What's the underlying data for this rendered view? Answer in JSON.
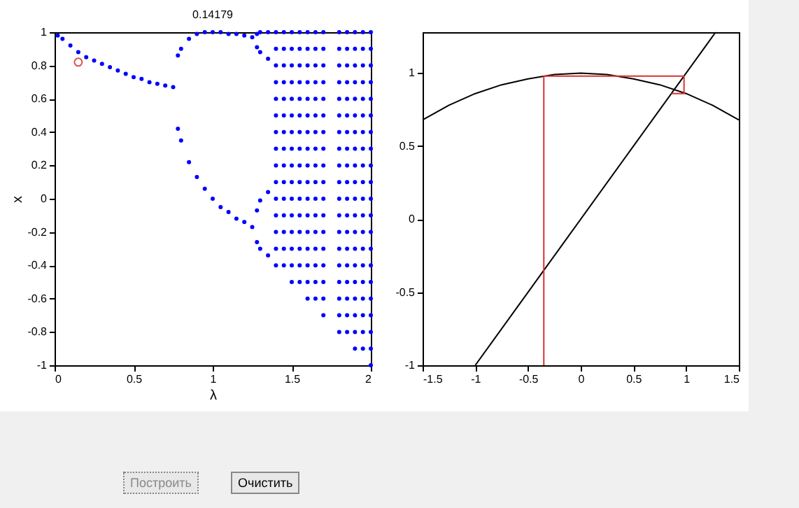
{
  "chart_data": [
    {
      "type": "scatter",
      "title": "0.14179",
      "xlabel": "λ",
      "ylabel": "x",
      "xlim": [
        0,
        2
      ],
      "xticks": [
        0,
        0.5,
        1,
        1.5,
        2
      ],
      "ylim": [
        -1,
        1
      ],
      "yticks": [
        -1,
        -0.8,
        -0.6,
        -0.4,
        -0.2,
        0,
        0.2,
        0.4,
        0.6,
        0.8,
        1
      ],
      "grid": false,
      "marker": "circle",
      "annotations": [
        "Построить",
        "Очистить"
      ],
      "series": [
        {
          "color": "#0000ff",
          "x": [
            0.02,
            0.05,
            0.1,
            0.15,
            0.2,
            0.25,
            0.3,
            0.35,
            0.4,
            0.45,
            0.5,
            0.55,
            0.6,
            0.65,
            0.7,
            0.75,
            0.78,
            0.78,
            0.8,
            0.8,
            0.85,
            0.85,
            0.9,
            0.9,
            0.95,
            0.95,
            1.0,
            1.0,
            1.05,
            1.05,
            1.1,
            1.1,
            1.15,
            1.15,
            1.2,
            1.2,
            1.25,
            1.25,
            1.28,
            1.28,
            1.28,
            1.28,
            1.3,
            1.3,
            1.3,
            1.3,
            1.35,
            1.35,
            1.35,
            1.35
          ],
          "values": [
            0.98,
            0.96,
            0.92,
            0.88,
            0.85,
            0.83,
            0.81,
            0.79,
            0.77,
            0.75,
            0.73,
            0.72,
            0.7,
            0.69,
            0.68,
            0.67,
            0.86,
            0.42,
            0.9,
            0.35,
            0.96,
            0.22,
            0.99,
            0.13,
            1.0,
            0.06,
            1.0,
            0.0,
            1.0,
            -0.05,
            0.99,
            -0.08,
            0.99,
            -0.12,
            0.98,
            -0.14,
            0.97,
            -0.17,
            0.99,
            0.91,
            -0.07,
            -0.26,
            1.0,
            0.88,
            -0.01,
            -0.3,
            1.0,
            0.84,
            0.04,
            -0.34
          ]
        },
        {
          "color": "#0000ff",
          "x": [
            1.4,
            1.4,
            1.4,
            1.4,
            1.4,
            1.4,
            1.4,
            1.4,
            1.4,
            1.4,
            1.4,
            1.4,
            1.4,
            1.4,
            1.4,
            1.45,
            1.45,
            1.45,
            1.45,
            1.45,
            1.45,
            1.45,
            1.45,
            1.45,
            1.45,
            1.45,
            1.45,
            1.45,
            1.45,
            1.45,
            1.5,
            1.5,
            1.5,
            1.5,
            1.5,
            1.5,
            1.5,
            1.5,
            1.5,
            1.5,
            1.5,
            1.5,
            1.5,
            1.5,
            1.5,
            1.5,
            1.55,
            1.55,
            1.55,
            1.55,
            1.55,
            1.55,
            1.55,
            1.55,
            1.55,
            1.55,
            1.55,
            1.55,
            1.55,
            1.55,
            1.55,
            1.55,
            1.6,
            1.6,
            1.6,
            1.6,
            1.6,
            1.6,
            1.6,
            1.6,
            1.6,
            1.6,
            1.6,
            1.6,
            1.6,
            1.6,
            1.6,
            1.6,
            1.6,
            1.65,
            1.65,
            1.65,
            1.65,
            1.65,
            1.65,
            1.65,
            1.65,
            1.65,
            1.65,
            1.65,
            1.65,
            1.65,
            1.65,
            1.65,
            1.65,
            1.65,
            1.7,
            1.7,
            1.7,
            1.7,
            1.7,
            1.7,
            1.7,
            1.7,
            1.7,
            1.7,
            1.7,
            1.7,
            1.7,
            1.7,
            1.7,
            1.7,
            1.7,
            1.7,
            1.8,
            1.8,
            1.8,
            1.8,
            1.8,
            1.8,
            1.8,
            1.8,
            1.8,
            1.8,
            1.8,
            1.8,
            1.8,
            1.8,
            1.8,
            1.8,
            1.8,
            1.8,
            1.8,
            1.85,
            1.85,
            1.85,
            1.85,
            1.85,
            1.85,
            1.85,
            1.85,
            1.85,
            1.85,
            1.85,
            1.85,
            1.85,
            1.85,
            1.85,
            1.85,
            1.85,
            1.85,
            1.85,
            1.9,
            1.9,
            1.9,
            1.9,
            1.9,
            1.9,
            1.9,
            1.9,
            1.9,
            1.9,
            1.9,
            1.9,
            1.9,
            1.9,
            1.9,
            1.9,
            1.9,
            1.9,
            1.9,
            1.9,
            1.95,
            1.95,
            1.95,
            1.95,
            1.95,
            1.95,
            1.95,
            1.95,
            1.95,
            1.95,
            1.95,
            1.95,
            1.95,
            1.95,
            1.95,
            1.95,
            1.95,
            1.95,
            1.95,
            1.95,
            2,
            2,
            2,
            2,
            2,
            2,
            2,
            2,
            2,
            2,
            2,
            2,
            2,
            2,
            2,
            2,
            2,
            2,
            2,
            2,
            2
          ],
          "values": [
            -0.4,
            -0.3,
            -0.2,
            -0.1,
            0,
            0.1,
            0.2,
            0.3,
            0.4,
            0.5,
            0.6,
            0.7,
            0.8,
            0.9,
            1,
            -0.4,
            -0.3,
            -0.2,
            -0.1,
            0,
            0.1,
            0.2,
            0.3,
            0.4,
            0.5,
            0.6,
            0.7,
            0.8,
            0.9,
            1,
            -0.5,
            -0.4,
            -0.3,
            -0.2,
            -0.1,
            0,
            0.1,
            0.2,
            0.3,
            0.4,
            0.5,
            0.6,
            0.7,
            0.8,
            0.9,
            1,
            -0.5,
            -0.4,
            -0.3,
            -0.2,
            -0.1,
            0,
            0.1,
            0.2,
            0.3,
            0.4,
            0.5,
            0.6,
            0.7,
            0.8,
            0.9,
            1,
            -0.6,
            -0.5,
            -0.4,
            -0.3,
            -0.2,
            -0.1,
            0,
            0.1,
            0.2,
            0.3,
            0.4,
            0.5,
            0.6,
            0.7,
            0.8,
            0.9,
            1,
            -0.6,
            -0.5,
            -0.4,
            -0.3,
            -0.2,
            -0.1,
            0,
            0.1,
            0.2,
            0.3,
            0.4,
            0.5,
            0.6,
            0.7,
            0.8,
            0.9,
            1,
            -0.7,
            -0.6,
            -0.5,
            -0.4,
            -0.3,
            -0.2,
            -0.1,
            0,
            0.1,
            0.2,
            0.3,
            0.4,
            0.5,
            0.6,
            0.7,
            0.8,
            0.9,
            1,
            -0.8,
            -0.7,
            -0.6,
            -0.5,
            -0.4,
            -0.3,
            -0.2,
            -0.1,
            0,
            0.1,
            0.2,
            0.3,
            0.4,
            0.5,
            0.6,
            0.7,
            0.8,
            0.9,
            1,
            -0.8,
            -0.7,
            -0.6,
            -0.5,
            -0.4,
            -0.3,
            -0.2,
            -0.1,
            0,
            0.1,
            0.2,
            0.3,
            0.4,
            0.5,
            0.6,
            0.7,
            0.8,
            0.9,
            1,
            -0.9,
            -0.8,
            -0.7,
            -0.6,
            -0.5,
            -0.4,
            -0.3,
            -0.2,
            -0.1,
            0,
            0.1,
            0.2,
            0.3,
            0.4,
            0.5,
            0.6,
            0.7,
            0.8,
            0.9,
            1,
            -0.9,
            -0.8,
            -0.7,
            -0.6,
            -0.5,
            -0.4,
            -0.3,
            -0.2,
            -0.1,
            0,
            0.1,
            0.2,
            0.3,
            0.4,
            0.5,
            0.6,
            0.7,
            0.8,
            0.9,
            1,
            -1,
            -0.9,
            -0.8,
            -0.7,
            -0.6,
            -0.5,
            -0.4,
            -0.3,
            -0.2,
            -0.1,
            0,
            0.1,
            0.2,
            0.3,
            0.4,
            0.5,
            0.6,
            0.7,
            0.8,
            0.9,
            1
          ]
        },
        {
          "color": "#d9534f",
          "x": [
            0.15
          ],
          "values": [
            0.82
          ]
        }
      ]
    },
    {
      "type": "line",
      "xlim": [
        -1.5,
        1.5
      ],
      "xticks": [
        -1.5,
        -1,
        -0.5,
        0,
        0.5,
        1,
        1.5
      ],
      "ylim": [
        -1,
        1.28
      ],
      "yticks": [
        -1,
        -0.5,
        0,
        0.5,
        1
      ],
      "grid": false,
      "series": [
        {
          "color": "#000000",
          "x": [
            -1.5,
            -1.25,
            -1,
            -0.75,
            -0.5,
            -0.25,
            0,
            0.25,
            0.5,
            0.75,
            1,
            1.25,
            1.5
          ],
          "values": [
            0.68,
            0.78,
            0.86,
            0.92,
            0.96,
            0.99,
            1,
            0.99,
            0.96,
            0.92,
            0.86,
            0.78,
            0.68
          ]
        },
        {
          "color": "#000000",
          "x": [
            -1,
            1.28
          ],
          "values": [
            -1,
            1.28
          ]
        },
        {
          "color": "#e03030",
          "x": [
            -0.35,
            -0.35,
            0.98,
            0.98,
            0.86
          ],
          "values": [
            -1,
            0.98,
            0.98,
            0.86,
            0.86
          ]
        }
      ]
    }
  ]
}
